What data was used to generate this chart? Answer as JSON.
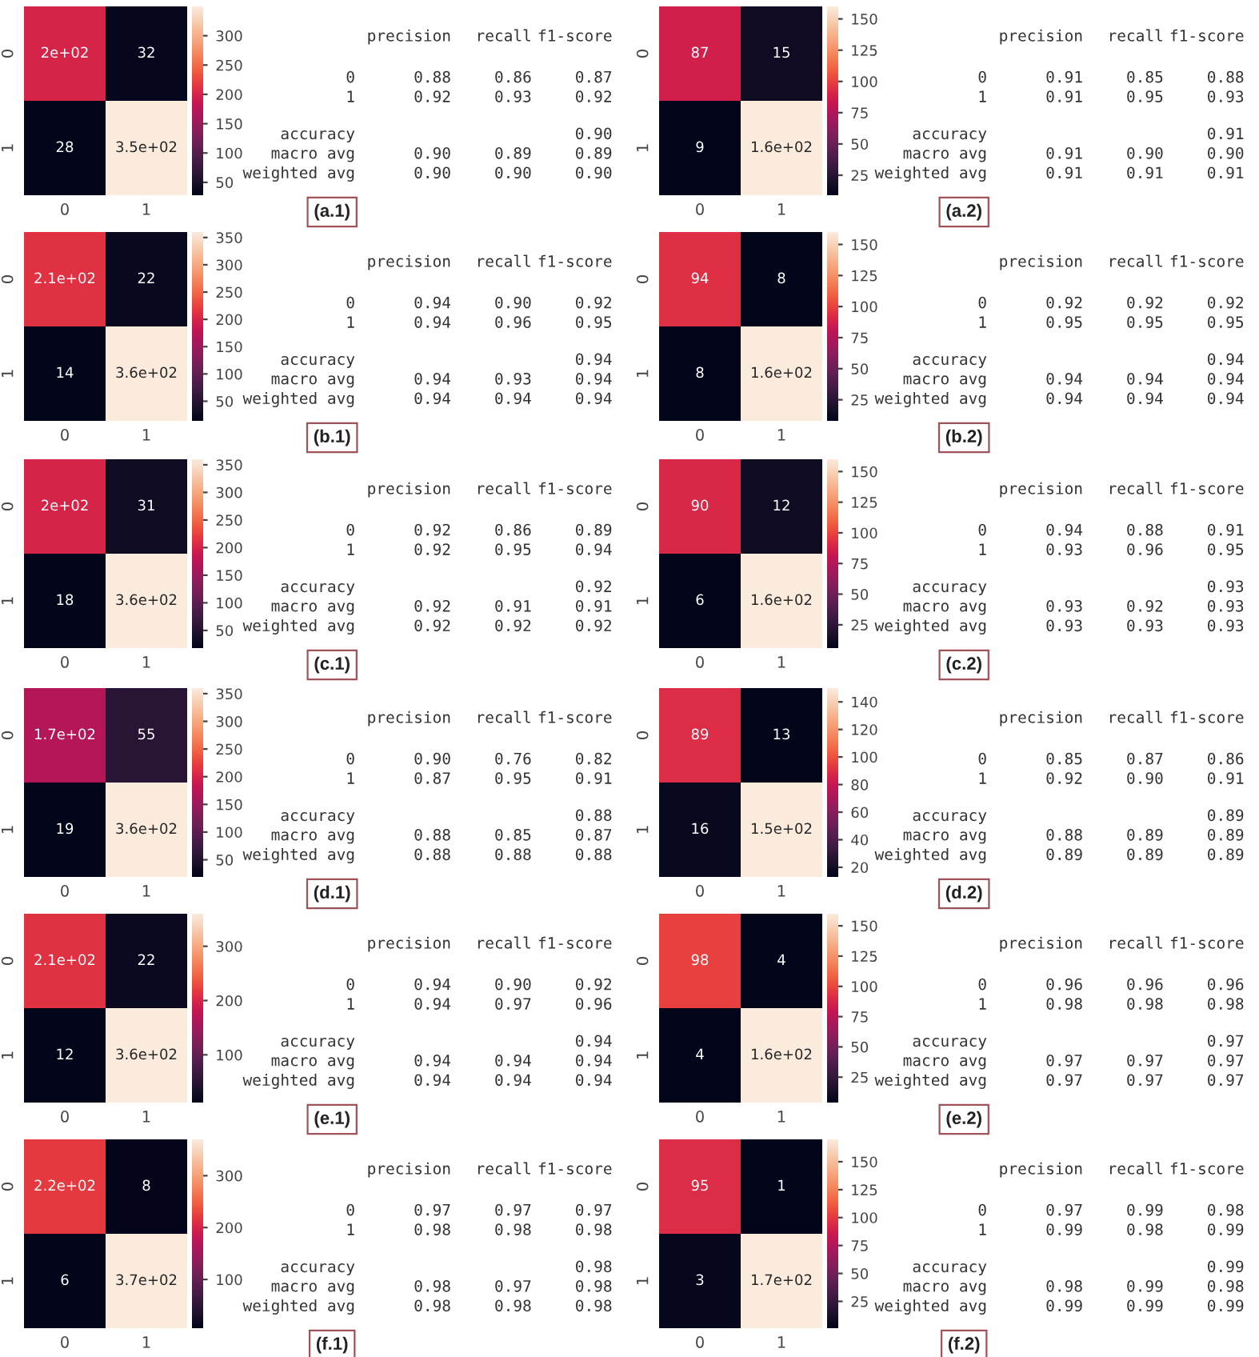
{
  "chart_data": [
    {
      "type": "heatmap",
      "categories": [
        "0",
        "1"
      ],
      "y_categories": [
        "0",
        "1"
      ],
      "cells": [
        [
          200,
          32
        ],
        [
          28,
          350
        ]
      ],
      "cell_labels": [
        [
          "2e+02",
          "32"
        ],
        [
          "28",
          "3.5e+02"
        ]
      ],
      "clim": [
        28,
        350
      ],
      "cticks": [
        50,
        100,
        150,
        200,
        250,
        300
      ]
    },
    {
      "type": "other",
      "categories": [
        "precision",
        "recall",
        "f1-score"
      ],
      "y_categories": [
        "0",
        "1",
        "accuracy",
        "macro avg",
        "weighted avg"
      ],
      "cell_labels": [
        [
          "0.88",
          "0.86",
          "0.87"
        ],
        [
          "0.92",
          "0.93",
          "0.92"
        ],
        [
          null,
          null,
          "0.90"
        ],
        [
          "0.90",
          "0.89",
          "0.89"
        ],
        [
          "0.90",
          "0.90",
          "0.90"
        ]
      ],
      "annotations": [
        "(a.1)"
      ]
    },
    {
      "type": "heatmap",
      "categories": [
        "0",
        "1"
      ],
      "y_categories": [
        "0",
        "1"
      ],
      "cells": [
        [
          87,
          15
        ],
        [
          9,
          160
        ]
      ],
      "cell_labels": [
        [
          "87",
          "15"
        ],
        [
          "9",
          "1.6e+02"
        ]
      ],
      "clim": [
        9,
        160
      ],
      "cticks": [
        25,
        50,
        75,
        100,
        125,
        150
      ]
    },
    {
      "type": "other",
      "categories": [
        "precision",
        "recall",
        "f1-score"
      ],
      "y_categories": [
        "0",
        "1",
        "accuracy",
        "macro avg",
        "weighted avg"
      ],
      "cell_labels": [
        [
          "0.91",
          "0.85",
          "0.88"
        ],
        [
          "0.91",
          "0.95",
          "0.93"
        ],
        [
          null,
          null,
          "0.91"
        ],
        [
          "0.91",
          "0.90",
          "0.90"
        ],
        [
          "0.91",
          "0.91",
          "0.91"
        ]
      ],
      "annotations": [
        "(a.2)"
      ]
    },
    {
      "type": "heatmap",
      "categories": [
        "0",
        "1"
      ],
      "y_categories": [
        "0",
        "1"
      ],
      "cells": [
        [
          210,
          22
        ],
        [
          14,
          360
        ]
      ],
      "cell_labels": [
        [
          "2.1e+02",
          "22"
        ],
        [
          "14",
          "3.6e+02"
        ]
      ],
      "clim": [
        14,
        360
      ],
      "cticks": [
        50,
        100,
        150,
        200,
        250,
        300,
        350
      ]
    },
    {
      "type": "other",
      "categories": [
        "precision",
        "recall",
        "f1-score"
      ],
      "y_categories": [
        "0",
        "1",
        "accuracy",
        "macro avg",
        "weighted avg"
      ],
      "cell_labels": [
        [
          "0.94",
          "0.90",
          "0.92"
        ],
        [
          "0.94",
          "0.96",
          "0.95"
        ],
        [
          null,
          null,
          "0.94"
        ],
        [
          "0.94",
          "0.93",
          "0.94"
        ],
        [
          "0.94",
          "0.94",
          "0.94"
        ]
      ],
      "annotations": [
        "(b.1)"
      ]
    },
    {
      "type": "heatmap",
      "categories": [
        "0",
        "1"
      ],
      "y_categories": [
        "0",
        "1"
      ],
      "cells": [
        [
          94,
          8
        ],
        [
          8,
          160
        ]
      ],
      "cell_labels": [
        [
          "94",
          "8"
        ],
        [
          "8",
          "1.6e+02"
        ]
      ],
      "clim": [
        8,
        160
      ],
      "cticks": [
        25,
        50,
        75,
        100,
        125,
        150
      ]
    },
    {
      "type": "other",
      "categories": [
        "precision",
        "recall",
        "f1-score"
      ],
      "y_categories": [
        "0",
        "1",
        "accuracy",
        "macro avg",
        "weighted avg"
      ],
      "cell_labels": [
        [
          "0.92",
          "0.92",
          "0.92"
        ],
        [
          "0.95",
          "0.95",
          "0.95"
        ],
        [
          null,
          null,
          "0.94"
        ],
        [
          "0.94",
          "0.94",
          "0.94"
        ],
        [
          "0.94",
          "0.94",
          "0.94"
        ]
      ],
      "annotations": [
        "(b.2)"
      ]
    },
    {
      "type": "heatmap",
      "categories": [
        "0",
        "1"
      ],
      "y_categories": [
        "0",
        "1"
      ],
      "cells": [
        [
          200,
          31
        ],
        [
          18,
          360
        ]
      ],
      "cell_labels": [
        [
          "2e+02",
          "31"
        ],
        [
          "18",
          "3.6e+02"
        ]
      ],
      "clim": [
        18,
        360
      ],
      "cticks": [
        50,
        100,
        150,
        200,
        250,
        300,
        350
      ]
    },
    {
      "type": "other",
      "categories": [
        "precision",
        "recall",
        "f1-score"
      ],
      "y_categories": [
        "0",
        "1",
        "accuracy",
        "macro avg",
        "weighted avg"
      ],
      "cell_labels": [
        [
          "0.92",
          "0.86",
          "0.89"
        ],
        [
          "0.92",
          "0.95",
          "0.94"
        ],
        [
          null,
          null,
          "0.92"
        ],
        [
          "0.92",
          "0.91",
          "0.91"
        ],
        [
          "0.92",
          "0.92",
          "0.92"
        ]
      ],
      "annotations": [
        "(c.1)"
      ]
    },
    {
      "type": "heatmap",
      "categories": [
        "0",
        "1"
      ],
      "y_categories": [
        "0",
        "1"
      ],
      "cells": [
        [
          90,
          12
        ],
        [
          6,
          160
        ]
      ],
      "cell_labels": [
        [
          "90",
          "12"
        ],
        [
          "6",
          "1.6e+02"
        ]
      ],
      "clim": [
        6,
        160
      ],
      "cticks": [
        25,
        50,
        75,
        100,
        125,
        150
      ]
    },
    {
      "type": "other",
      "categories": [
        "precision",
        "recall",
        "f1-score"
      ],
      "y_categories": [
        "0",
        "1",
        "accuracy",
        "macro avg",
        "weighted avg"
      ],
      "cell_labels": [
        [
          "0.94",
          "0.88",
          "0.91"
        ],
        [
          "0.93",
          "0.96",
          "0.95"
        ],
        [
          null,
          null,
          "0.93"
        ],
        [
          "0.93",
          "0.92",
          "0.93"
        ],
        [
          "0.93",
          "0.93",
          "0.93"
        ]
      ],
      "annotations": [
        "(c.2)"
      ]
    },
    {
      "type": "heatmap",
      "categories": [
        "0",
        "1"
      ],
      "y_categories": [
        "0",
        "1"
      ],
      "cells": [
        [
          170,
          55
        ],
        [
          19,
          360
        ]
      ],
      "cell_labels": [
        [
          "1.7e+02",
          "55"
        ],
        [
          "19",
          "3.6e+02"
        ]
      ],
      "clim": [
        19,
        360
      ],
      "cticks": [
        50,
        100,
        150,
        200,
        250,
        300,
        350
      ]
    },
    {
      "type": "other",
      "categories": [
        "precision",
        "recall",
        "f1-score"
      ],
      "y_categories": [
        "0",
        "1",
        "accuracy",
        "macro avg",
        "weighted avg"
      ],
      "cell_labels": [
        [
          "0.90",
          "0.76",
          "0.82"
        ],
        [
          "0.87",
          "0.95",
          "0.91"
        ],
        [
          null,
          null,
          "0.88"
        ],
        [
          "0.88",
          "0.85",
          "0.87"
        ],
        [
          "0.88",
          "0.88",
          "0.88"
        ]
      ],
      "annotations": [
        "(d.1)"
      ]
    },
    {
      "type": "heatmap",
      "categories": [
        "0",
        "1"
      ],
      "y_categories": [
        "0",
        "1"
      ],
      "cells": [
        [
          89,
          13
        ],
        [
          16,
          150
        ]
      ],
      "cell_labels": [
        [
          "89",
          "13"
        ],
        [
          "16",
          "1.5e+02"
        ]
      ],
      "clim": [
        13,
        150
      ],
      "cticks": [
        20,
        40,
        60,
        80,
        100,
        120,
        140
      ]
    },
    {
      "type": "other",
      "categories": [
        "precision",
        "recall",
        "f1-score"
      ],
      "y_categories": [
        "0",
        "1",
        "accuracy",
        "macro avg",
        "weighted avg"
      ],
      "cell_labels": [
        [
          "0.85",
          "0.87",
          "0.86"
        ],
        [
          "0.92",
          "0.90",
          "0.91"
        ],
        [
          null,
          null,
          "0.89"
        ],
        [
          "0.88",
          "0.89",
          "0.89"
        ],
        [
          "0.89",
          "0.89",
          "0.89"
        ]
      ],
      "annotations": [
        "(d.2)"
      ]
    },
    {
      "type": "heatmap",
      "categories": [
        "0",
        "1"
      ],
      "y_categories": [
        "0",
        "1"
      ],
      "cells": [
        [
          210,
          22
        ],
        [
          12,
          360
        ]
      ],
      "cell_labels": [
        [
          "2.1e+02",
          "22"
        ],
        [
          "12",
          "3.6e+02"
        ]
      ],
      "clim": [
        12,
        360
      ],
      "cticks": [
        100,
        200,
        300
      ]
    },
    {
      "type": "other",
      "categories": [
        "precision",
        "recall",
        "f1-score"
      ],
      "y_categories": [
        "0",
        "1",
        "accuracy",
        "macro avg",
        "weighted avg"
      ],
      "cell_labels": [
        [
          "0.94",
          "0.90",
          "0.92"
        ],
        [
          "0.94",
          "0.97",
          "0.96"
        ],
        [
          null,
          null,
          "0.94"
        ],
        [
          "0.94",
          "0.94",
          "0.94"
        ],
        [
          "0.94",
          "0.94",
          "0.94"
        ]
      ],
      "annotations": [
        "(e.1)"
      ]
    },
    {
      "type": "heatmap",
      "categories": [
        "0",
        "1"
      ],
      "y_categories": [
        "0",
        "1"
      ],
      "cells": [
        [
          98,
          4
        ],
        [
          4,
          160
        ]
      ],
      "cell_labels": [
        [
          "98",
          "4"
        ],
        [
          "4",
          "1.6e+02"
        ]
      ],
      "clim": [
        4,
        160
      ],
      "cticks": [
        25,
        50,
        75,
        100,
        125,
        150
      ]
    },
    {
      "type": "other",
      "categories": [
        "precision",
        "recall",
        "f1-score"
      ],
      "y_categories": [
        "0",
        "1",
        "accuracy",
        "macro avg",
        "weighted avg"
      ],
      "cell_labels": [
        [
          "0.96",
          "0.96",
          "0.96"
        ],
        [
          "0.98",
          "0.98",
          "0.98"
        ],
        [
          null,
          null,
          "0.97"
        ],
        [
          "0.97",
          "0.97",
          "0.97"
        ],
        [
          "0.97",
          "0.97",
          "0.97"
        ]
      ],
      "annotations": [
        "(e.2)"
      ]
    },
    {
      "type": "heatmap",
      "categories": [
        "0",
        "1"
      ],
      "y_categories": [
        "0",
        "1"
      ],
      "cells": [
        [
          220,
          8
        ],
        [
          6,
          370
        ]
      ],
      "cell_labels": [
        [
          "2.2e+02",
          "8"
        ],
        [
          "6",
          "3.7e+02"
        ]
      ],
      "clim": [
        6,
        370
      ],
      "cticks": [
        100,
        200,
        300
      ]
    },
    {
      "type": "other",
      "categories": [
        "precision",
        "recall",
        "f1-score"
      ],
      "y_categories": [
        "0",
        "1",
        "accuracy",
        "macro avg",
        "weighted avg"
      ],
      "cell_labels": [
        [
          "0.97",
          "0.97",
          "0.97"
        ],
        [
          "0.98",
          "0.98",
          "0.98"
        ],
        [
          null,
          null,
          "0.98"
        ],
        [
          "0.98",
          "0.97",
          "0.98"
        ],
        [
          "0.98",
          "0.98",
          "0.98"
        ]
      ],
      "annotations": [
        "(f.1)"
      ]
    },
    {
      "type": "heatmap",
      "categories": [
        "0",
        "1"
      ],
      "y_categories": [
        "0",
        "1"
      ],
      "cells": [
        [
          95,
          1
        ],
        [
          3,
          170
        ]
      ],
      "cell_labels": [
        [
          "95",
          "1"
        ],
        [
          "3",
          "1.7e+02"
        ]
      ],
      "clim": [
        1,
        170
      ],
      "cticks": [
        25,
        50,
        75,
        100,
        125,
        150
      ]
    },
    {
      "type": "other",
      "categories": [
        "precision",
        "recall",
        "f1-score"
      ],
      "y_categories": [
        "0",
        "1",
        "accuracy",
        "macro avg",
        "weighted avg"
      ],
      "cell_labels": [
        [
          "0.97",
          "0.99",
          "0.98"
        ],
        [
          "0.99",
          "0.98",
          "0.99"
        ],
        [
          null,
          null,
          "0.99"
        ],
        [
          "0.98",
          "0.99",
          "0.98"
        ],
        [
          "0.99",
          "0.99",
          "0.99"
        ]
      ],
      "annotations": [
        "(f.2)"
      ]
    }
  ]
}
